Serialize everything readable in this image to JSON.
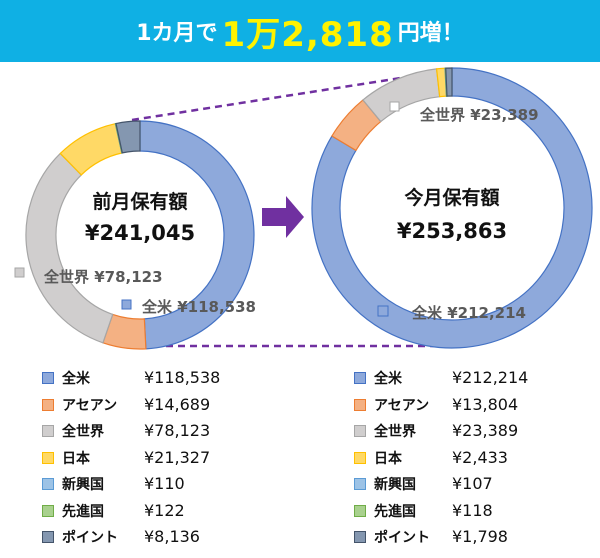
{
  "header": {
    "prefix": "1カ月で",
    "highlight": "1万2,818",
    "suffix": "円増！"
  },
  "colors": {
    "banner": "#0fb0e4",
    "highlight": "#fff200",
    "arrow": "#7030a0",
    "connector": "#7030a0"
  },
  "chart_data": [
    {
      "type": "pie",
      "donut": true,
      "title": "前月保有額",
      "total_label": "¥241,045",
      "categories": [
        "全米",
        "アセアン",
        "全世界",
        "日本",
        "新興国",
        "先進国",
        "ポイント"
      ],
      "values": [
        118538,
        14689,
        78123,
        21327,
        110,
        122,
        8136
      ],
      "annotations": [
        {
          "text": "全世界 ¥78,123",
          "series": "全世界"
        },
        {
          "text": "全米 ¥118,538",
          "series": "全米"
        }
      ]
    },
    {
      "type": "pie",
      "donut": true,
      "title": "今月保有額",
      "total_label": "¥253,863",
      "categories": [
        "全米",
        "アセアン",
        "全世界",
        "日本",
        "新興国",
        "先進国",
        "ポイント"
      ],
      "values": [
        212214,
        13804,
        23389,
        2433,
        107,
        118,
        1798
      ],
      "annotations": [
        {
          "text": "全世界 ¥23,389",
          "series": "全世界"
        },
        {
          "text": "全米 ¥212,214",
          "series": "全米"
        }
      ]
    }
  ],
  "legend_left": [
    {
      "name": "全米",
      "value": "¥118,538",
      "color": "#8ea9db",
      "border": "#4472c4"
    },
    {
      "name": "アセアン",
      "value": "¥14,689",
      "color": "#f4b183",
      "border": "#ed7d31"
    },
    {
      "name": "全世界",
      "value": "¥78,123",
      "color": "#d0cece",
      "border": "#a6a6a6"
    },
    {
      "name": "日本",
      "value": "¥21,327",
      "color": "#ffd966",
      "border": "#ffc000"
    },
    {
      "name": "新興国",
      "value": "¥110",
      "color": "#9dc3e6",
      "border": "#5b9bd5"
    },
    {
      "name": "先進国",
      "value": "¥122",
      "color": "#a9d18e",
      "border": "#70ad47"
    },
    {
      "name": "ポイント",
      "value": "¥8,136",
      "color": "#8497b0",
      "border": "#44546a"
    }
  ],
  "legend_right": [
    {
      "name": "全米",
      "value": "¥212,214",
      "color": "#8ea9db",
      "border": "#4472c4"
    },
    {
      "name": "アセアン",
      "value": "¥13,804",
      "color": "#f4b183",
      "border": "#ed7d31"
    },
    {
      "name": "全世界",
      "value": "¥23,389",
      "color": "#d0cece",
      "border": "#a6a6a6"
    },
    {
      "name": "日本",
      "value": "¥2,433",
      "color": "#ffd966",
      "border": "#ffc000"
    },
    {
      "name": "新興国",
      "value": "¥107",
      "color": "#9dc3e6",
      "border": "#5b9bd5"
    },
    {
      "name": "先進国",
      "value": "¥118",
      "color": "#a9d18e",
      "border": "#70ad47"
    },
    {
      "name": "ポイント",
      "value": "¥1,798",
      "color": "#8497b0",
      "border": "#44546a"
    }
  ]
}
